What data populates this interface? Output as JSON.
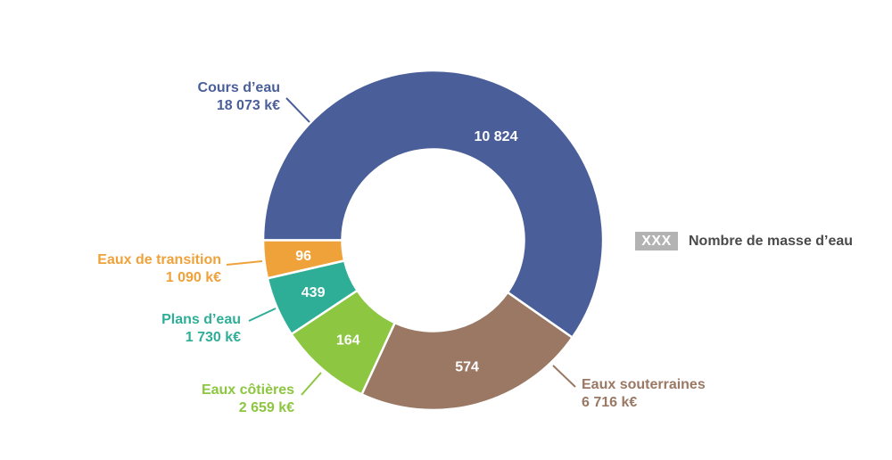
{
  "chart_data": {
    "type": "pie",
    "subtype": "donut",
    "title": "",
    "unit": "k€",
    "start_angle_deg": 180,
    "direction": "clockwise",
    "center": [
      485.5,
      269.5
    ],
    "outer_radius": 190.5,
    "inner_radius": 102,
    "slices": [
      {
        "name": "Cours d’eau",
        "value": 18073,
        "value_label": "18 073 k€",
        "count": "10 824",
        "color": "#4a5f9a"
      },
      {
        "name": "Eaux souterraines",
        "value": 6716,
        "value_label": "6 716 k€",
        "count": "574",
        "color": "#9a7864"
      },
      {
        "name": "Eaux côtières",
        "value": 2659,
        "value_label": "2 659 k€",
        "count": "164",
        "color": "#8dc640"
      },
      {
        "name": "Plans d’eau",
        "value": 1730,
        "value_label": "1 730 k€",
        "count": "439",
        "color": "#2fae97"
      },
      {
        "name": "Eaux de transition",
        "value": 1090,
        "value_label": "1 090 k€",
        "count": "96",
        "color": "#f0a23a"
      }
    ],
    "legend": {
      "box_text": "XXX",
      "label": "Nombre de masse d’eau",
      "box_color": "#b3b3b3"
    }
  },
  "labels": [
    {
      "name": "Cours d’eau",
      "value": "18 073 k€"
    },
    {
      "name": "Eaux souterraines",
      "value": "6 716 k€"
    },
    {
      "name": "Eaux côtières",
      "value": "2 659 k€"
    },
    {
      "name": "Plans d’eau",
      "value": "1 730 k€"
    },
    {
      "name": "Eaux de transition",
      "value": "1 090 k€"
    }
  ],
  "legend": {
    "box_text": "XXX",
    "label": "Nombre de masse d’eau"
  }
}
